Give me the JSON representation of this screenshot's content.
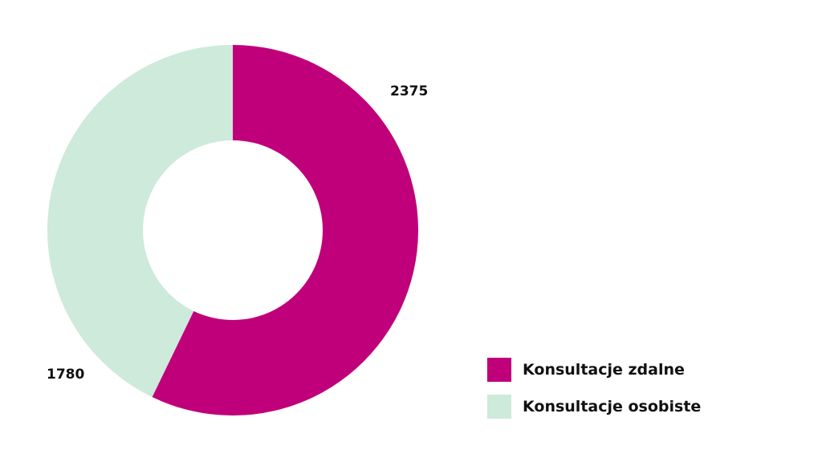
{
  "chart_data": {
    "type": "pie",
    "variant": "donut",
    "title": "",
    "categories": [
      "Konsultacje zdalne",
      "Konsultacje osobiste"
    ],
    "values": [
      2375,
      1780
    ],
    "colors": [
      "#c0007a",
      "#cdeadb"
    ],
    "data_labels": [
      "2375",
      "1780"
    ],
    "legend_position": "bottom-right"
  },
  "labels": {
    "zdalne_value": "2375",
    "osobiste_value": "1780"
  },
  "legend": {
    "items": [
      {
        "label": "Konsultacje zdalne",
        "color": "#c0007a"
      },
      {
        "label": "Konsultacje osobiste",
        "color": "#cdeadb"
      }
    ]
  }
}
